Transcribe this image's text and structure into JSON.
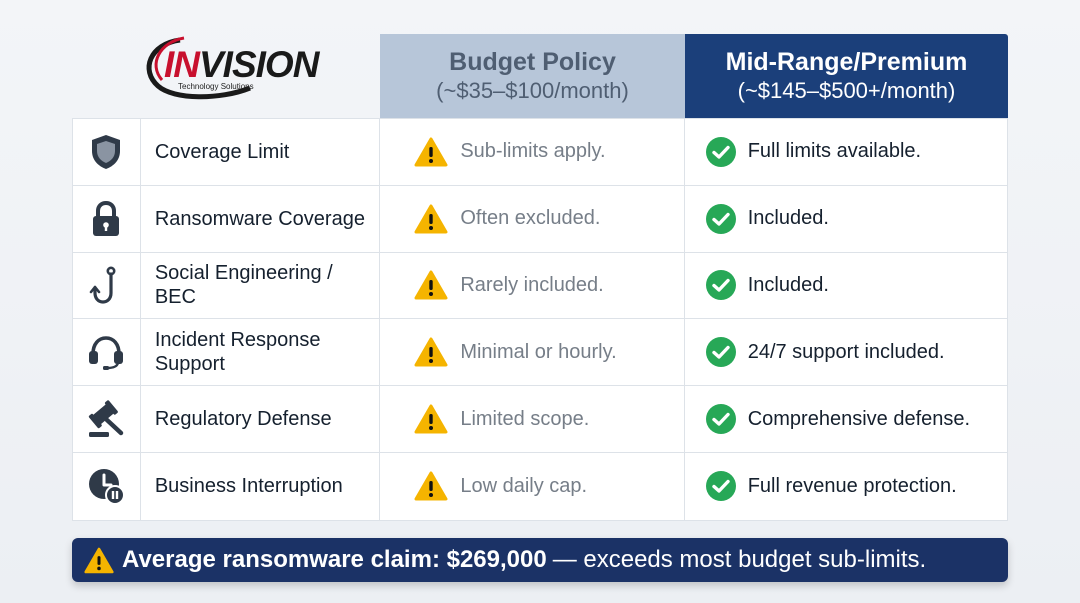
{
  "brand": {
    "name_part1": "IN",
    "name_part2": "VISION",
    "tagline": "Technology Solutions"
  },
  "columns": {
    "budget": {
      "title": "Budget Policy",
      "price": "(~$35–$100/month)"
    },
    "premium": {
      "title": "Mid-Range/Premium",
      "price": "(~$145–$500+/month)"
    }
  },
  "rows": [
    {
      "icon": "shield-icon",
      "feature": "Coverage Limit",
      "budget": "Sub-limits apply.",
      "premium": "Full limits available."
    },
    {
      "icon": "lock-icon",
      "feature": "Ransomware Coverage",
      "budget": "Often excluded.",
      "premium": "Included."
    },
    {
      "icon": "fishing-hook-icon",
      "feature": "Social Engineering / BEC",
      "budget": "Rarely included.",
      "premium": "Included."
    },
    {
      "icon": "headset-icon",
      "feature": "Incident Response Support",
      "budget": "Minimal or hourly.",
      "premium": "24/7 support included."
    },
    {
      "icon": "gavel-icon",
      "feature": "Regulatory Defense",
      "budget": "Limited scope.",
      "premium": "Comprehensive defense."
    },
    {
      "icon": "clock-pause-icon",
      "feature": "Business Interruption",
      "budget": "Low daily cap.",
      "premium": "Full revenue protection."
    }
  ],
  "banner": {
    "strong": "Average ransomware claim: $269,000",
    "rest": "— exceeds most budget sub-limits."
  },
  "colors": {
    "header_budget": "#b7c6d9",
    "header_premium": "#1b3f7a",
    "warning": "#f5b400",
    "check": "#27a857",
    "banner": "#1b3266"
  }
}
